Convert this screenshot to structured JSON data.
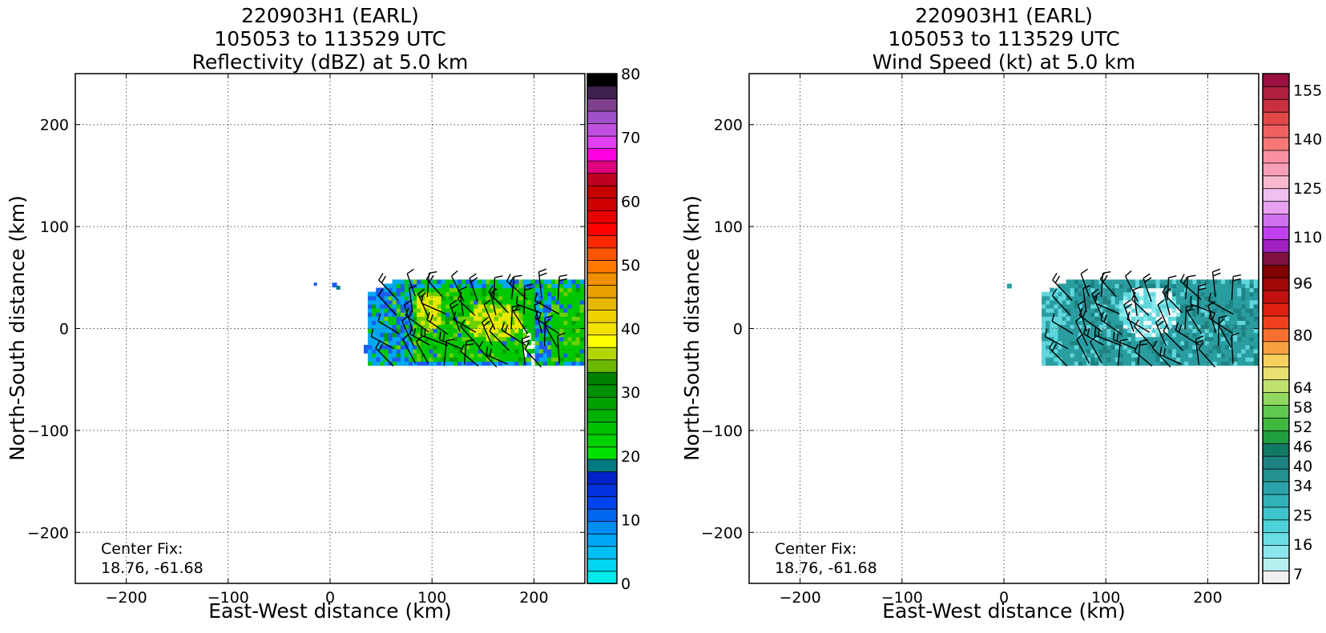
{
  "panels": [
    {
      "title_lines": [
        "220903H1 (EARL)",
        "105053 to 113529 UTC",
        "Reflectivity (dBZ) at 5.0 km"
      ],
      "xlabel": "East-West distance (km)",
      "ylabel": "North-South distance (km)",
      "note_lines": [
        "Center Fix:",
        "18.76, -61.68"
      ]
    },
    {
      "title_lines": [
        "220903H1 (EARL)",
        "105053 to 113529 UTC",
        "Wind Speed (kt) at 5.0 km"
      ],
      "xlabel": "East-West distance (km)",
      "ylabel": "North-South distance (km)",
      "note_lines": [
        "Center Fix:",
        "18.76, -61.68"
      ]
    }
  ],
  "chart_data": [
    {
      "type": "heatmap",
      "title": "220903H1 (EARL) 105053 to 113529 UTC Reflectivity (dBZ) at 5.0 km",
      "xlabel": "East-West distance (km)",
      "ylabel": "North-South distance (km)",
      "xlim": [
        -250,
        250
      ],
      "ylim": [
        -250,
        250
      ],
      "xticks": [
        -200,
        -100,
        0,
        100,
        200
      ],
      "yticks": [
        -200,
        -100,
        0,
        100,
        200
      ],
      "xtick_labels": [
        "−200",
        "−100",
        "0",
        "100",
        "200"
      ],
      "ytick_labels": [
        "−200",
        "−100",
        "0",
        "100",
        "200"
      ],
      "grid": true,
      "colorbar": {
        "min": 0,
        "max": 80,
        "tick_values": [
          0,
          10,
          20,
          30,
          40,
          50,
          60,
          70,
          80
        ],
        "tick_labels": [
          "0",
          "10",
          "20",
          "30",
          "40",
          "50",
          "60",
          "70",
          "80"
        ],
        "colors": [
          "#00ebeb",
          "#00d5f0",
          "#00bff5",
          "#00a5f5",
          "#008cf5",
          "#0066f0",
          "#0044f0",
          "#0033dd",
          "#0022c8",
          "#007a82",
          "#00e000",
          "#00d000",
          "#00c000",
          "#00b000",
          "#00a000",
          "#009000",
          "#008000",
          "#6cb800",
          "#b4d600",
          "#ffff00",
          "#f3e100",
          "#efd000",
          "#e8b800",
          "#e8a000",
          "#f09000",
          "#ff7800",
          "#ff5500",
          "#ff2800",
          "#ff0000",
          "#e80000",
          "#d00000",
          "#c40000",
          "#bf0020",
          "#e00080",
          "#ff00e0",
          "#e040f0",
          "#c050e0",
          "#a050c8",
          "#804090",
          "#402050",
          "#000000"
        ]
      },
      "field_blobs": [
        {
          "cx": 135,
          "cy": 5,
          "rx": 65,
          "ry": 35,
          "level": "green-20-30dBZ"
        },
        {
          "cx": 160,
          "cy": 5,
          "rx": 28,
          "ry": 18,
          "level": "yellow-35-40dBZ"
        },
        {
          "cx": 95,
          "cy": 15,
          "rx": 14,
          "ry": 20,
          "level": "yellow-35-40dBZ"
        },
        {
          "cx": 215,
          "cy": 10,
          "rx": 35,
          "ry": 45,
          "level": "green-20-30dBZ"
        }
      ],
      "annotation": "Center Fix: 18.76, -61.68"
    },
    {
      "type": "heatmap",
      "title": "220903H1 (EARL) 105053 to 113529 UTC Wind Speed (kt) at 5.0 km",
      "xlabel": "East-West distance (km)",
      "ylabel": "North-South distance (km)",
      "xlim": [
        -250,
        250
      ],
      "ylim": [
        -250,
        250
      ],
      "xticks": [
        -200,
        -100,
        0,
        100,
        200
      ],
      "yticks": [
        -200,
        -100,
        0,
        100,
        200
      ],
      "xtick_labels": [
        "−200",
        "−100",
        "0",
        "100",
        "200"
      ],
      "ytick_labels": [
        "−200",
        "−100",
        "0",
        "100",
        "200"
      ],
      "grid": true,
      "colorbar": {
        "min": 4,
        "max": 160,
        "tick_values": [
          7,
          16,
          25,
          34,
          40,
          46,
          52,
          58,
          64,
          80,
          96,
          110,
          125,
          140,
          155
        ],
        "tick_labels": [
          "7",
          "16",
          "25",
          "34",
          "40",
          "46",
          "52",
          "58",
          "64",
          "80",
          "96",
          "110",
          "125",
          "140",
          "155"
        ],
        "colors": [
          "#f0f0f0",
          "#b4f0f0",
          "#8ae8ec",
          "#6adee4",
          "#4ed2da",
          "#3ec4ca",
          "#30b2b8",
          "#2aa2a8",
          "#24928e",
          "#1e8282",
          "#117a66",
          "#20a040",
          "#40b840",
          "#60c850",
          "#90d860",
          "#c0e070",
          "#e8e070",
          "#f8d060",
          "#f8a040",
          "#f87030",
          "#f04020",
          "#e02010",
          "#c01010",
          "#a00808",
          "#800000",
          "#801040",
          "#a020c0",
          "#c040f0",
          "#d070f0",
          "#e8a0f0",
          "#f0c0f0",
          "#f8b8d0",
          "#f8a0b8",
          "#f890a0",
          "#f87878",
          "#f06060",
          "#e04848",
          "#c83040",
          "#b02040",
          "#9a1040"
        ]
      },
      "field_blobs": [
        {
          "cx": 145,
          "cy": 5,
          "rx": 70,
          "ry": 35,
          "level": "teal-20-28kt"
        },
        {
          "cx": 140,
          "cy": 15,
          "rx": 30,
          "ry": 25,
          "level": "cyan-10-18kt"
        },
        {
          "cx": 200,
          "cy": 5,
          "rx": 40,
          "ry": 30,
          "level": "teal-20-28kt"
        }
      ],
      "annotation": "Center Fix: 18.76, -61.68"
    }
  ],
  "palette": {
    "reflectivity_field": {
      "blue": "#1a5cf0",
      "cyan": "#00a8f0",
      "teal": "#007a82",
      "green": "#00c800",
      "lightgreen": "#6cd000",
      "yellow": "#e8e800",
      "darkgreen": "#00a000"
    },
    "wind_field": {
      "teal": "#2a9da0",
      "darkteal": "#1e8282",
      "cyan": "#5fd6dc",
      "lightcyan": "#8ae8ec",
      "white": "#eef8f8"
    },
    "barb": "#000000",
    "grid": "#555555"
  }
}
